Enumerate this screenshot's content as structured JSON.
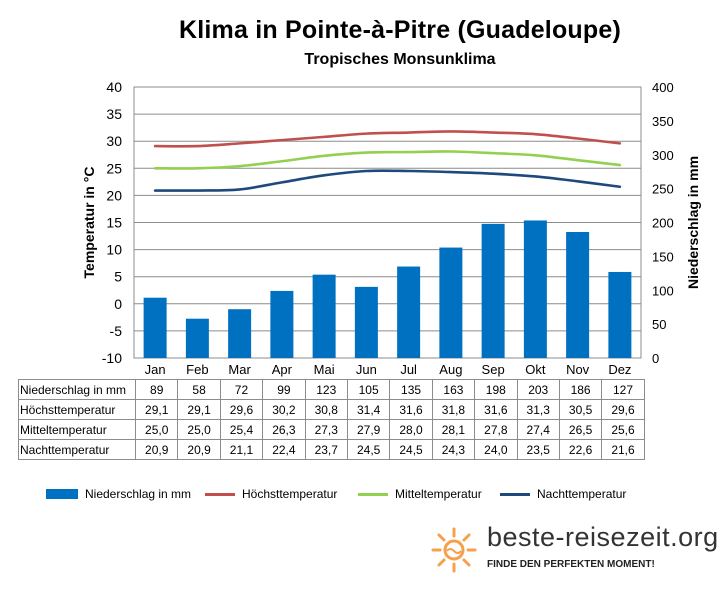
{
  "title": "Klima in Pointe-à-Pitre (Guadeloupe)",
  "subtitle": "Tropisches Monsunklima",
  "chart_data": {
    "type": "bar",
    "categories": [
      "Jan",
      "Feb",
      "Mar",
      "Apr",
      "Mai",
      "Jun",
      "Jul",
      "Aug",
      "Sep",
      "Okt",
      "Nov",
      "Dez"
    ],
    "ylabel": "Temperatur in °C",
    "y2label": "Niederschlag in mm",
    "ylim": [
      -10,
      40
    ],
    "y2lim": [
      0,
      400
    ],
    "yticks": [
      "-10",
      "-5",
      "0",
      "5",
      "10",
      "15",
      "20",
      "25",
      "30",
      "35",
      "40"
    ],
    "y2ticks": [
      "0",
      "50",
      "100",
      "150",
      "200",
      "250",
      "300",
      "350",
      "400"
    ],
    "grid": "horizontal",
    "legend_position": "bottom",
    "series": [
      {
        "name": "Niederschlag in mm",
        "type": "bar",
        "axis": "right",
        "color": "#0070c0",
        "values": [
          89,
          58,
          72,
          99,
          123,
          105,
          135,
          163,
          198,
          203,
          186,
          127
        ]
      },
      {
        "name": "Höchsttemperatur",
        "type": "line",
        "axis": "left",
        "color": "#c0504d",
        "values": [
          29.1,
          29.1,
          29.6,
          30.2,
          30.8,
          31.4,
          31.6,
          31.8,
          31.6,
          31.3,
          30.5,
          29.6
        ]
      },
      {
        "name": "Mitteltemperatur",
        "type": "line",
        "axis": "left",
        "color": "#92d050",
        "values": [
          25.0,
          25.0,
          25.4,
          26.3,
          27.3,
          27.9,
          28.0,
          28.1,
          27.8,
          27.4,
          26.5,
          25.6
        ]
      },
      {
        "name": "Nachttemperatur",
        "type": "line",
        "axis": "left",
        "color": "#1f497d",
        "values": [
          20.9,
          20.9,
          21.1,
          22.4,
          23.7,
          24.5,
          24.5,
          24.3,
          24.0,
          23.5,
          22.6,
          21.6
        ]
      }
    ],
    "table_rows": [
      {
        "label": "Niederschlag in mm",
        "cells": [
          "89",
          "58",
          "72",
          "99",
          "123",
          "105",
          "135",
          "163",
          "198",
          "203",
          "186",
          "127"
        ]
      },
      {
        "label": "Höchsttemperatur",
        "cells": [
          "29,1",
          "29,1",
          "29,6",
          "30,2",
          "30,8",
          "31,4",
          "31,6",
          "31,8",
          "31,6",
          "31,3",
          "30,5",
          "29,6"
        ]
      },
      {
        "label": "Mitteltemperatur",
        "cells": [
          "25,0",
          "25,0",
          "25,4",
          "26,3",
          "27,3",
          "27,9",
          "28,0",
          "28,1",
          "27,8",
          "27,4",
          "26,5",
          "25,6"
        ]
      },
      {
        "label": "Nachttemperatur",
        "cells": [
          "20,9",
          "20,9",
          "21,1",
          "22,4",
          "23,7",
          "24,5",
          "24,5",
          "24,3",
          "24,0",
          "23,5",
          "22,6",
          "21,6"
        ]
      }
    ]
  },
  "brand": {
    "name": "beste-reisezeit.org",
    "tagline": "FINDE DEN PERFEKTEN MOMENT!",
    "icon": "sun-icon",
    "color": "#f5a04a"
  }
}
